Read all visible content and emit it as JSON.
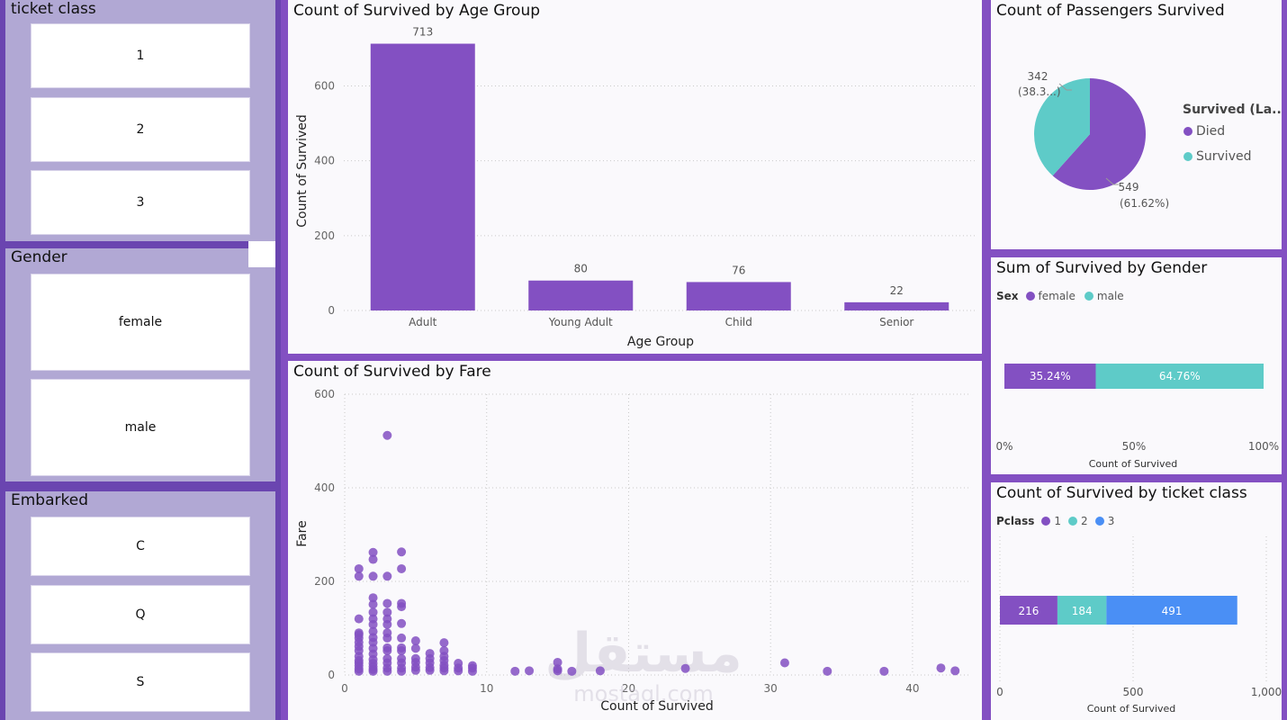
{
  "slicers": {
    "ticket_class": {
      "title": "ticket class",
      "items": [
        "1",
        "2",
        "3"
      ]
    },
    "gender": {
      "title": "Gender",
      "items": [
        "female",
        "male"
      ]
    },
    "embarked": {
      "title": "Embarked",
      "items": [
        "C",
        "Q",
        "S"
      ]
    }
  },
  "colors": {
    "purple": "#8350c2",
    "teal": "#5ecbc8",
    "blue": "#4a8ff5"
  },
  "age_chart": {
    "title": "Count of Survived by Age Group"
  },
  "fare_chart": {
    "title": "Count of Survived by Fare"
  },
  "pie_chart": {
    "title": "Count of Passengers Survived",
    "legend_title": "Survived (La...",
    "label_survived": "342",
    "label_survived_pct": "(38.3...)",
    "label_died": "549",
    "label_died_pct": "(61.62%)"
  },
  "gender_chart": {
    "title": "Sum of Survived by Gender",
    "legend_label": "Sex"
  },
  "class_chart": {
    "title": "Count of Survived by ticket class",
    "legend_label": "Pclass"
  },
  "watermark": {
    "arabic": "مستقل",
    "latin": "mostaql.com"
  },
  "chart_data": [
    {
      "type": "bar",
      "title": "Count of Survived by Age Group",
      "xlabel": "Age Group",
      "ylabel": "Count of Survived",
      "categories": [
        "Adult",
        "Young Adult",
        "Child",
        "Senior"
      ],
      "values": [
        713,
        80,
        76,
        22
      ],
      "yticks": [
        0,
        200,
        400,
        600
      ],
      "ylim": [
        0,
        760
      ],
      "grid": true
    },
    {
      "type": "scatter",
      "title": "Count of Survived by Fare",
      "xlabel": "Count of Survived",
      "ylabel": "Fare",
      "xticks": [
        0,
        10,
        20,
        30,
        40
      ],
      "yticks": [
        0,
        200,
        400,
        600
      ],
      "xlim": [
        0,
        44
      ],
      "ylim": [
        0,
        600
      ],
      "grid": true,
      "points": [
        [
          1,
          8
        ],
        [
          1,
          13
        ],
        [
          1,
          20
        ],
        [
          1,
          26
        ],
        [
          1,
          31
        ],
        [
          1,
          40
        ],
        [
          1,
          52
        ],
        [
          1,
          61
        ],
        [
          1,
          70
        ],
        [
          1,
          79
        ],
        [
          1,
          86
        ],
        [
          1,
          90
        ],
        [
          1,
          120
        ],
        [
          1,
          211
        ],
        [
          1,
          227
        ],
        [
          2,
          8
        ],
        [
          2,
          12
        ],
        [
          2,
          18
        ],
        [
          2,
          25
        ],
        [
          2,
          33
        ],
        [
          2,
          45
        ],
        [
          2,
          57
        ],
        [
          2,
          70
        ],
        [
          2,
          80
        ],
        [
          2,
          93
        ],
        [
          2,
          108
        ],
        [
          2,
          120
        ],
        [
          2,
          134
        ],
        [
          2,
          151
        ],
        [
          2,
          165
        ],
        [
          2,
          211
        ],
        [
          2,
          247
        ],
        [
          2,
          262
        ],
        [
          3,
          8
        ],
        [
          3,
          15
        ],
        [
          3,
          26
        ],
        [
          3,
          35
        ],
        [
          3,
          52
        ],
        [
          3,
          58
        ],
        [
          3,
          79
        ],
        [
          3,
          90
        ],
        [
          3,
          108
        ],
        [
          3,
          120
        ],
        [
          3,
          134
        ],
        [
          3,
          153
        ],
        [
          3,
          211
        ],
        [
          3,
          512
        ],
        [
          4,
          8
        ],
        [
          4,
          15
        ],
        [
          4,
          26
        ],
        [
          4,
          35
        ],
        [
          4,
          52
        ],
        [
          4,
          58
        ],
        [
          4,
          79
        ],
        [
          4,
          110
        ],
        [
          4,
          146
        ],
        [
          4,
          153
        ],
        [
          4,
          227
        ],
        [
          4,
          263
        ],
        [
          5,
          10
        ],
        [
          5,
          17
        ],
        [
          5,
          27
        ],
        [
          5,
          35
        ],
        [
          5,
          57
        ],
        [
          5,
          73
        ],
        [
          6,
          10
        ],
        [
          6,
          16
        ],
        [
          6,
          26
        ],
        [
          6,
          35
        ],
        [
          6,
          46
        ],
        [
          7,
          9
        ],
        [
          7,
          15
        ],
        [
          7,
          21
        ],
        [
          7,
          31
        ],
        [
          7,
          40
        ],
        [
          7,
          52
        ],
        [
          7,
          69
        ],
        [
          8,
          9
        ],
        [
          8,
          15
        ],
        [
          8,
          25
        ],
        [
          9,
          8
        ],
        [
          9,
          15
        ],
        [
          9,
          20
        ],
        [
          12,
          8
        ],
        [
          13,
          9
        ],
        [
          15,
          9
        ],
        [
          15,
          13
        ],
        [
          15,
          27
        ],
        [
          16,
          8
        ],
        [
          18,
          9
        ],
        [
          24,
          14
        ],
        [
          31,
          26
        ],
        [
          34,
          8
        ],
        [
          38,
          8
        ],
        [
          42,
          15
        ],
        [
          43,
          9
        ]
      ]
    },
    {
      "type": "pie",
      "title": "Count of Passengers Survived",
      "legend_title": "Survived (La...",
      "slices": [
        {
          "name": "Died",
          "value": 549,
          "label": "549 (61.62%)",
          "color": "#8350c2"
        },
        {
          "name": "Survived",
          "value": 342,
          "label": "342 (38.3...)",
          "color": "#5ecbc8"
        }
      ]
    },
    {
      "type": "bar",
      "subtype": "100% stacked horizontal",
      "title": "Sum of Survived by Gender",
      "xlabel": "Count of Survived",
      "legend_title": "Sex",
      "series": [
        {
          "name": "female",
          "values": [
            35.24
          ],
          "label": "35.24%",
          "color": "#8350c2"
        },
        {
          "name": "male",
          "values": [
            64.76
          ],
          "label": "64.76%",
          "color": "#5ecbc8"
        }
      ],
      "xticks": [
        "0%",
        "50%",
        "100%"
      ],
      "xlim": [
        0,
        100
      ]
    },
    {
      "type": "bar",
      "subtype": "stacked horizontal",
      "title": "Count of Survived by ticket class",
      "xlabel": "Count of Survived",
      "legend_title": "Pclass",
      "series": [
        {
          "name": "1",
          "values": [
            216
          ],
          "label": "216",
          "color": "#8350c2"
        },
        {
          "name": "2",
          "values": [
            184
          ],
          "label": "184",
          "color": "#5ecbc8"
        },
        {
          "name": "3",
          "values": [
            491
          ],
          "label": "491",
          "color": "#4a8ff5"
        }
      ],
      "xticks": [
        "0",
        "500",
        "1,000"
      ],
      "xlim": [
        0,
        1000
      ]
    }
  ]
}
